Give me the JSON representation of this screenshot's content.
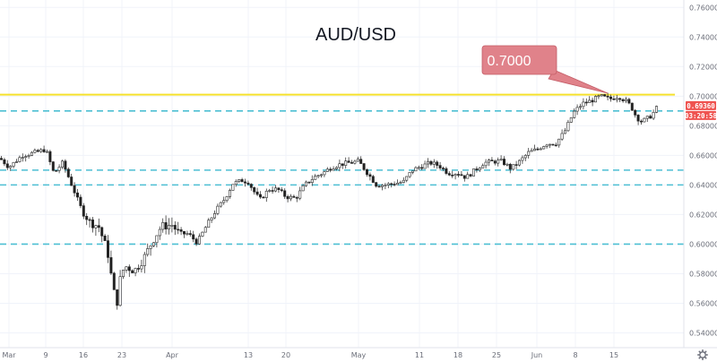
{
  "chart_data": {
    "type": "candlestick",
    "title": "AUD/USD",
    "annotation": "0.7000",
    "price_tag": "0.69360",
    "countdown_tag": "03:20:58",
    "ylim": [
      0.53,
      0.765
    ],
    "y_ticks": [
      "0.76000",
      "0.74000",
      "0.72000",
      "0.70000",
      "0.68000",
      "0.66000",
      "0.64000",
      "0.62000",
      "0.60000",
      "0.58000",
      "0.56000",
      "0.54000"
    ],
    "y_tick_values": [
      0.76,
      0.74,
      0.72,
      0.7,
      0.68,
      0.66,
      0.64,
      0.62,
      0.6,
      0.58,
      0.56,
      0.54
    ],
    "x_ticks": [
      "Mar",
      "9",
      "16",
      "23",
      "Apr",
      "13",
      "20",
      "May",
      "11",
      "18",
      "25",
      "Jun",
      "8",
      "15"
    ],
    "x_tick_index": [
      10,
      51,
      93,
      136,
      192,
      277,
      319,
      400,
      468,
      511,
      554,
      599,
      642,
      685
    ],
    "levels": [
      {
        "value": 0.701,
        "color": "#f5e12d",
        "style": "solid"
      },
      {
        "value": 0.69,
        "color": "#4dbfd3",
        "style": "dashed"
      },
      {
        "value": 0.65,
        "color": "#4dbfd3",
        "style": "dashed"
      },
      {
        "value": 0.64,
        "color": "#4dbfd3",
        "style": "dashed"
      },
      {
        "value": 0.6,
        "color": "#4dbfd3",
        "style": "dashed"
      }
    ],
    "colors": {
      "up": "#26a69a",
      "down": "#ef5350",
      "annotation": "#e0828a",
      "tag_price": "#ef5350"
    },
    "anchors": [
      [
        0,
        0.658
      ],
      [
        10,
        0.652
      ],
      [
        25,
        0.66
      ],
      [
        40,
        0.662
      ],
      [
        51,
        0.664
      ],
      [
        60,
        0.648
      ],
      [
        70,
        0.655
      ],
      [
        80,
        0.64
      ],
      [
        90,
        0.625
      ],
      [
        100,
        0.615
      ],
      [
        110,
        0.612
      ],
      [
        120,
        0.595
      ],
      [
        125,
        0.575
      ],
      [
        130,
        0.558
      ],
      [
        135,
        0.58
      ],
      [
        140,
        0.585
      ],
      [
        150,
        0.582
      ],
      [
        160,
        0.59
      ],
      [
        170,
        0.602
      ],
      [
        180,
        0.612
      ],
      [
        192,
        0.613
      ],
      [
        200,
        0.607
      ],
      [
        210,
        0.607
      ],
      [
        220,
        0.601
      ],
      [
        230,
        0.612
      ],
      [
        240,
        0.622
      ],
      [
        250,
        0.63
      ],
      [
        260,
        0.641
      ],
      [
        270,
        0.643
      ],
      [
        277,
        0.642
      ],
      [
        285,
        0.634
      ],
      [
        290,
        0.63
      ],
      [
        300,
        0.637
      ],
      [
        310,
        0.637
      ],
      [
        319,
        0.632
      ],
      [
        330,
        0.631
      ],
      [
        340,
        0.64
      ],
      [
        350,
        0.645
      ],
      [
        360,
        0.648
      ],
      [
        370,
        0.652
      ],
      [
        380,
        0.654
      ],
      [
        390,
        0.655
      ],
      [
        400,
        0.656
      ],
      [
        410,
        0.648
      ],
      [
        420,
        0.64
      ],
      [
        430,
        0.64
      ],
      [
        440,
        0.641
      ],
      [
        450,
        0.642
      ],
      [
        460,
        0.65
      ],
      [
        468,
        0.652
      ],
      [
        480,
        0.655
      ],
      [
        490,
        0.653
      ],
      [
        500,
        0.648
      ],
      [
        511,
        0.648
      ],
      [
        520,
        0.645
      ],
      [
        530,
        0.65
      ],
      [
        540,
        0.655
      ],
      [
        554,
        0.656
      ],
      [
        560,
        0.656
      ],
      [
        570,
        0.651
      ],
      [
        580,
        0.656
      ],
      [
        590,
        0.662
      ],
      [
        599,
        0.664
      ],
      [
        610,
        0.668
      ],
      [
        620,
        0.668
      ],
      [
        630,
        0.676
      ],
      [
        640,
        0.689
      ],
      [
        650,
        0.695
      ],
      [
        660,
        0.697
      ],
      [
        670,
        0.7
      ],
      [
        680,
        0.698
      ],
      [
        690,
        0.7
      ],
      [
        700,
        0.696
      ],
      [
        705,
        0.692
      ],
      [
        710,
        0.686
      ],
      [
        715,
        0.683
      ],
      [
        720,
        0.684
      ],
      [
        727,
        0.687
      ],
      [
        735,
        0.694
      ]
    ]
  }
}
